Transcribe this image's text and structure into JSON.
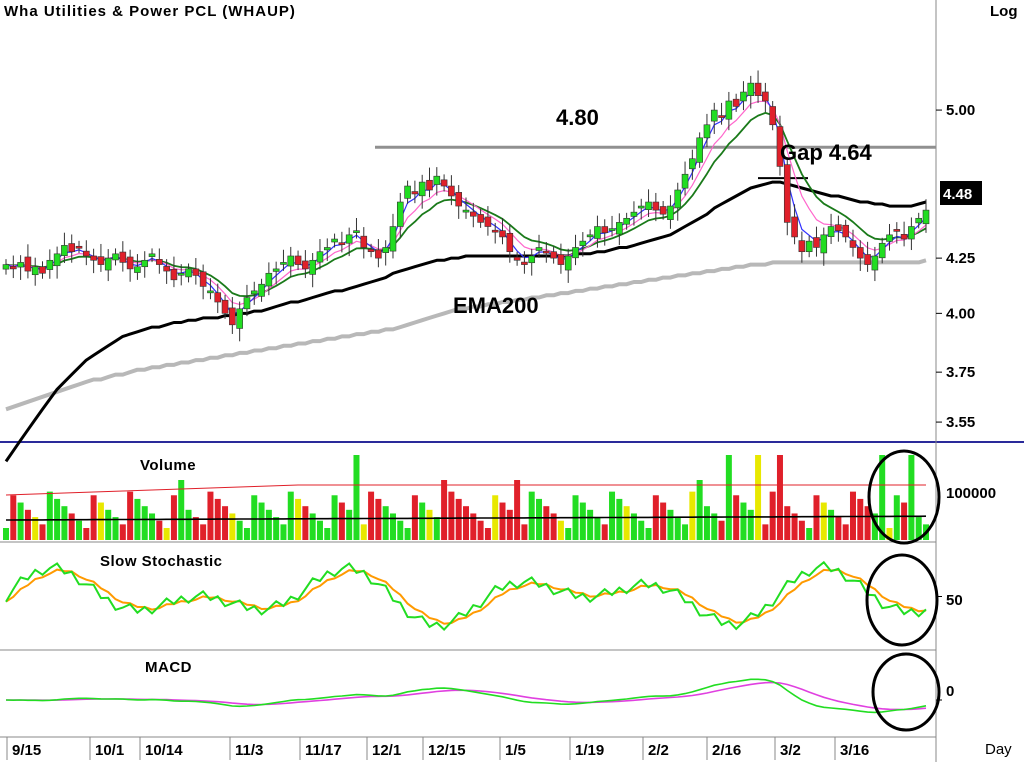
{
  "chart_data": [
    {
      "type": "candlestick",
      "title": "Wha  Utilities  &  Power  PCL  (WHAUP)",
      "scale_label": "Log",
      "y_ticks": [
        3.55,
        3.75,
        4.0,
        4.25,
        5.0
      ],
      "y_tick_labels": [
        "3.55",
        "3.75",
        "4.00",
        "4.25",
        "5.00"
      ],
      "last_price_label": "4.48",
      "x_labels": [
        "9/15",
        "10/1",
        "10/14",
        "11/3",
        "11/17",
        "12/1",
        "12/15",
        "1/5",
        "1/19",
        "2/2",
        "2/16",
        "3/2",
        "3/16"
      ],
      "x_footer_label": "Day",
      "annotations": {
        "resistance_label": "4.80",
        "resistance_level": 4.8,
        "gap_label": "Gap 4.64",
        "gap_level": 4.64,
        "ema_label": "EMA200"
      },
      "close_series": [
        4.22,
        4.2,
        4.23,
        4.19,
        4.21,
        4.18,
        4.24,
        4.27,
        4.31,
        4.28,
        4.3,
        4.26,
        4.24,
        4.22,
        4.25,
        4.27,
        4.23,
        4.2,
        4.21,
        4.24,
        4.27,
        4.22,
        4.19,
        4.15,
        4.18,
        4.2,
        4.17,
        4.12,
        4.1,
        4.05,
        4.0,
        3.95,
        4.02,
        4.07,
        4.1,
        4.13,
        4.18,
        4.2,
        4.23,
        4.26,
        4.22,
        4.2,
        4.24,
        4.28,
        4.3,
        4.34,
        4.32,
        4.36,
        4.38,
        4.3,
        4.28,
        4.25,
        4.3,
        4.4,
        4.52,
        4.6,
        4.56,
        4.62,
        4.58,
        4.65,
        4.6,
        4.55,
        4.5,
        4.48,
        4.45,
        4.42,
        4.4,
        4.38,
        4.35,
        4.28,
        4.24,
        4.22,
        4.26,
        4.3,
        4.28,
        4.25,
        4.22,
        4.26,
        4.3,
        4.33,
        4.36,
        4.4,
        4.37,
        4.39,
        4.42,
        4.44,
        4.47,
        4.5,
        4.52,
        4.48,
        4.46,
        4.5,
        4.58,
        4.66,
        4.74,
        4.85,
        4.92,
        5.0,
        4.96,
        5.05,
        5.02,
        5.1,
        5.15,
        5.08,
        5.05,
        4.92,
        4.7,
        4.42,
        4.35,
        4.28,
        4.33,
        4.3,
        4.36,
        4.4,
        4.38,
        4.35,
        4.3,
        4.25,
        4.22,
        4.26,
        4.32,
        4.36,
        4.38,
        4.34,
        4.4,
        4.44,
        4.48
      ],
      "ema200_series": [
        3.4,
        3.44,
        3.48,
        3.52,
        3.56,
        3.6,
        3.64,
        3.68,
        3.71,
        3.74,
        3.77,
        3.8,
        3.82,
        3.84,
        3.86,
        3.88,
        3.9,
        3.91,
        3.92,
        3.93,
        3.94,
        3.94,
        3.95,
        3.96,
        3.96,
        3.97,
        3.97,
        3.98,
        3.98,
        3.98,
        3.99,
        3.99,
        4.0,
        4.0,
        4.01,
        4.01,
        4.02,
        4.03,
        4.04,
        4.05,
        4.05,
        4.06,
        4.07,
        4.08,
        4.09,
        4.1,
        4.1,
        4.11,
        4.12,
        4.13,
        4.14,
        4.15,
        4.16,
        4.18,
        4.19,
        4.2,
        4.21,
        4.22,
        4.23,
        4.24,
        4.24,
        4.25,
        4.25,
        4.26,
        4.26,
        4.26,
        4.26,
        4.26,
        4.26,
        4.26,
        4.26,
        4.26,
        4.26,
        4.26,
        4.26,
        4.26,
        4.26,
        4.26,
        4.27,
        4.27,
        4.27,
        4.28,
        4.28,
        4.29,
        4.3,
        4.3,
        4.31,
        4.32,
        4.33,
        4.34,
        4.35,
        4.36,
        4.38,
        4.4,
        4.42,
        4.44,
        4.46,
        4.49,
        4.51,
        4.53,
        4.55,
        4.57,
        4.59,
        4.6,
        4.61,
        4.62,
        4.62,
        4.61,
        4.6,
        4.59,
        4.58,
        4.57,
        4.56,
        4.55,
        4.55,
        4.54,
        4.53,
        4.52,
        4.52,
        4.51,
        4.51,
        4.5,
        4.5,
        4.5,
        4.5,
        4.51,
        4.52
      ],
      "long_ma_series": [
        3.6,
        3.61,
        3.62,
        3.63,
        3.64,
        3.65,
        3.66,
        3.67,
        3.68,
        3.69,
        3.7,
        3.71,
        3.72,
        3.72,
        3.73,
        3.74,
        3.74,
        3.75,
        3.76,
        3.76,
        3.77,
        3.77,
        3.78,
        3.78,
        3.79,
        3.79,
        3.8,
        3.8,
        3.81,
        3.81,
        3.82,
        3.82,
        3.83,
        3.83,
        3.84,
        3.84,
        3.85,
        3.85,
        3.86,
        3.86,
        3.87,
        3.87,
        3.88,
        3.88,
        3.89,
        3.89,
        3.9,
        3.9,
        3.91,
        3.91,
        3.92,
        3.92,
        3.93,
        3.93,
        3.94,
        3.95,
        3.96,
        3.97,
        3.98,
        3.99,
        4.0,
        4.01,
        4.02,
        4.02,
        4.03,
        4.03,
        4.04,
        4.04,
        4.05,
        4.05,
        4.06,
        4.06,
        4.07,
        4.07,
        4.08,
        4.08,
        4.09,
        4.09,
        4.1,
        4.1,
        4.11,
        4.11,
        4.12,
        4.12,
        4.13,
        4.13,
        4.14,
        4.14,
        4.15,
        4.15,
        4.16,
        4.16,
        4.17,
        4.17,
        4.18,
        4.18,
        4.19,
        4.19,
        4.2,
        4.2,
        4.21,
        4.21,
        4.22,
        4.22,
        4.22,
        4.23,
        4.23,
        4.23,
        4.23,
        4.23,
        4.23,
        4.23,
        4.23,
        4.23,
        4.23,
        4.23,
        4.23,
        4.23,
        4.23,
        4.23,
        4.23,
        4.23,
        4.23,
        4.23,
        4.23,
        4.23,
        4.24
      ]
    },
    {
      "type": "bar",
      "panel_label": "Volume",
      "y_tick_label": "100000",
      "series": [
        {
          "name": "Volume",
          "values": []
        }
      ]
    },
    {
      "type": "line",
      "panel_label": "Slow  Stochastic",
      "y_tick_label": "50"
    },
    {
      "type": "line",
      "panel_label": "MACD",
      "y_tick_label": "0"
    }
  ],
  "colors": {
    "up": "#22dd22",
    "down": "#e0202a",
    "neutral": "#e8e800",
    "ema200": "#000000",
    "long_ma": "#b8b8b8",
    "ma_fast_blue": "#3030ff",
    "ma_pink": "#ff66cc",
    "ma_green": "#1a7a1a",
    "stoch_k": "#22dd22",
    "stoch_d": "#ff9a00",
    "macd": "#22dd22",
    "signal": "#e040e0",
    "separator": "#2a2a9a"
  }
}
